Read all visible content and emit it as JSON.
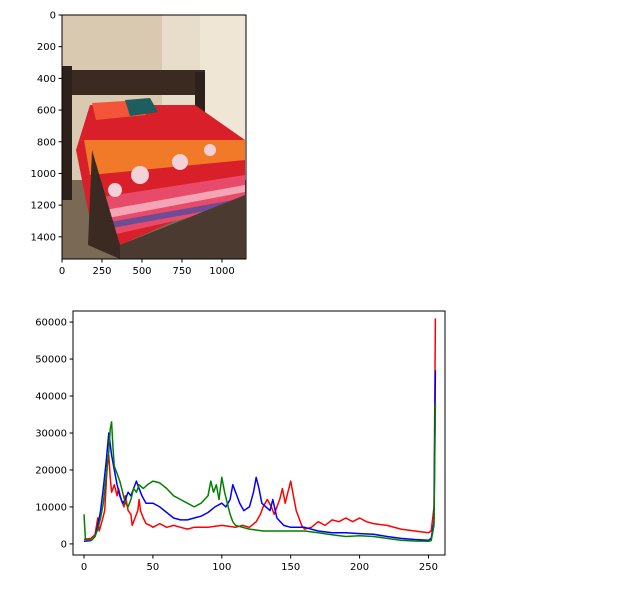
{
  "chart_data": [
    {
      "type": "image",
      "description_free": true,
      "x_ticks": [
        0,
        250,
        500,
        750,
        1000
      ],
      "y_ticks": [
        0,
        200,
        400,
        600,
        800,
        1000,
        1200,
        1400
      ],
      "xlim": [
        0,
        1150
      ],
      "ylim": [
        1540,
        0
      ],
      "colors": {
        "wall": "#e8dccb",
        "headboard": "#3a2a22",
        "bedspread_red": "#d81f2a",
        "bedspread_orange": "#f07a28",
        "pillow_teal": "#1e5e5f",
        "floor": "#7a6a55"
      }
    },
    {
      "type": "line",
      "title": "",
      "xlabel": "",
      "ylabel": "",
      "xlim": [
        -8,
        262
      ],
      "ylim": [
        -3000,
        63000
      ],
      "x_ticks": [
        0,
        50,
        100,
        150,
        200,
        250
      ],
      "y_ticks": [
        0,
        10000,
        20000,
        30000,
        40000,
        50000,
        60000
      ],
      "grid": false,
      "series": [
        {
          "color": "#ff0000",
          "points": [
            [
              0,
              1200
            ],
            [
              5,
              1500
            ],
            [
              8,
              2500
            ],
            [
              10,
              7000
            ],
            [
              11,
              3500
            ],
            [
              13,
              6000
            ],
            [
              15,
              9000
            ],
            [
              17,
              22000
            ],
            [
              18,
              24000
            ],
            [
              19,
              18000
            ],
            [
              20,
              14000
            ],
            [
              22,
              16000
            ],
            [
              24,
              13000
            ],
            [
              25,
              15000
            ],
            [
              27,
              12000
            ],
            [
              29,
              10000
            ],
            [
              30,
              13000
            ],
            [
              32,
              9000
            ],
            [
              34,
              8000
            ],
            [
              35,
              5000
            ],
            [
              37,
              7000
            ],
            [
              39,
              9000
            ],
            [
              40,
              12000
            ],
            [
              41,
              9000
            ],
            [
              43,
              7000
            ],
            [
              45,
              5500
            ],
            [
              48,
              5000
            ],
            [
              50,
              4500
            ],
            [
              55,
              5500
            ],
            [
              60,
              4500
            ],
            [
              65,
              5000
            ],
            [
              70,
              4500
            ],
            [
              75,
              4000
            ],
            [
              80,
              4500
            ],
            [
              90,
              4500
            ],
            [
              100,
              5000
            ],
            [
              110,
              4500
            ],
            [
              115,
              5000
            ],
            [
              120,
              4500
            ],
            [
              125,
              6000
            ],
            [
              128,
              8000
            ],
            [
              130,
              10000
            ],
            [
              133,
              12000
            ],
            [
              136,
              10000
            ],
            [
              138,
              8000
            ],
            [
              140,
              10000
            ],
            [
              142,
              12000
            ],
            [
              144,
              15000
            ],
            [
              146,
              11000
            ],
            [
              148,
              14000
            ],
            [
              150,
              17000
            ],
            [
              152,
              13000
            ],
            [
              154,
              9000
            ],
            [
              156,
              7000
            ],
            [
              158,
              5000
            ],
            [
              160,
              4000
            ],
            [
              165,
              4500
            ],
            [
              170,
              6000
            ],
            [
              175,
              5000
            ],
            [
              180,
              6500
            ],
            [
              185,
              6000
            ],
            [
              190,
              7000
            ],
            [
              195,
              6000
            ],
            [
              200,
              7000
            ],
            [
              205,
              6000
            ],
            [
              210,
              5500
            ],
            [
              220,
              5000
            ],
            [
              230,
              4000
            ],
            [
              240,
              3500
            ],
            [
              250,
              3000
            ],
            [
              252,
              3500
            ],
            [
              254,
              10000
            ],
            [
              255,
              61000
            ]
          ]
        },
        {
          "color": "#0000ff",
          "points": [
            [
              0,
              700
            ],
            [
              5,
              900
            ],
            [
              8,
              2000
            ],
            [
              10,
              5000
            ],
            [
              12,
              9000
            ],
            [
              14,
              15000
            ],
            [
              16,
              22000
            ],
            [
              18,
              30000
            ],
            [
              19,
              27000
            ],
            [
              20,
              24000
            ],
            [
              22,
              20000
            ],
            [
              24,
              16000
            ],
            [
              26,
              13000
            ],
            [
              28,
              11000
            ],
            [
              30,
              12000
            ],
            [
              32,
              14000
            ],
            [
              34,
              13000
            ],
            [
              36,
              15000
            ],
            [
              38,
              17000
            ],
            [
              40,
              15000
            ],
            [
              42,
              13000
            ],
            [
              45,
              11000
            ],
            [
              48,
              11000
            ],
            [
              50,
              11000
            ],
            [
              55,
              10000
            ],
            [
              60,
              8500
            ],
            [
              65,
              7000
            ],
            [
              70,
              6500
            ],
            [
              75,
              6500
            ],
            [
              80,
              7000
            ],
            [
              85,
              7500
            ],
            [
              90,
              8500
            ],
            [
              95,
              10000
            ],
            [
              100,
              11000
            ],
            [
              103,
              10000
            ],
            [
              106,
              12000
            ],
            [
              108,
              16000
            ],
            [
              110,
              14000
            ],
            [
              113,
              11000
            ],
            [
              116,
              9000
            ],
            [
              120,
              10000
            ],
            [
              123,
              14000
            ],
            [
              125,
              18000
            ],
            [
              127,
              15000
            ],
            [
              129,
              11000
            ],
            [
              132,
              10000
            ],
            [
              135,
              9000
            ],
            [
              137,
              12000
            ],
            [
              140,
              7000
            ],
            [
              145,
              5000
            ],
            [
              150,
              4500
            ],
            [
              160,
              4500
            ],
            [
              170,
              3500
            ],
            [
              180,
              3000
            ],
            [
              190,
              3000
            ],
            [
              200,
              2800
            ],
            [
              210,
              2600
            ],
            [
              220,
              2000
            ],
            [
              230,
              1500
            ],
            [
              240,
              1200
            ],
            [
              250,
              1000
            ],
            [
              252,
              1500
            ],
            [
              254,
              6000
            ],
            [
              255,
              47000
            ]
          ]
        },
        {
          "color": "#008000",
          "points": [
            [
              0,
              8000
            ],
            [
              1,
              1500
            ],
            [
              3,
              1000
            ],
            [
              6,
              1200
            ],
            [
              8,
              2000
            ],
            [
              10,
              4000
            ],
            [
              12,
              7000
            ],
            [
              14,
              11000
            ],
            [
              16,
              18000
            ],
            [
              18,
              25000
            ],
            [
              19,
              31000
            ],
            [
              20,
              33000
            ],
            [
              21,
              26000
            ],
            [
              22,
              21000
            ],
            [
              24,
              19000
            ],
            [
              26,
              17000
            ],
            [
              28,
              14000
            ],
            [
              30,
              11000
            ],
            [
              32,
              10000
            ],
            [
              34,
              12000
            ],
            [
              36,
              15000
            ],
            [
              38,
              14000
            ],
            [
              40,
              16000
            ],
            [
              43,
              15000
            ],
            [
              46,
              16000
            ],
            [
              50,
              17000
            ],
            [
              55,
              16500
            ],
            [
              60,
              15000
            ],
            [
              65,
              13000
            ],
            [
              70,
              12000
            ],
            [
              75,
              11000
            ],
            [
              80,
              10000
            ],
            [
              85,
              11000
            ],
            [
              90,
              13000
            ],
            [
              92,
              17000
            ],
            [
              94,
              14000
            ],
            [
              96,
              16000
            ],
            [
              98,
              12000
            ],
            [
              100,
              18000
            ],
            [
              102,
              14000
            ],
            [
              104,
              11000
            ],
            [
              106,
              8000
            ],
            [
              108,
              6000
            ],
            [
              110,
              5000
            ],
            [
              115,
              4500
            ],
            [
              120,
              4000
            ],
            [
              130,
              3500
            ],
            [
              140,
              3500
            ],
            [
              150,
              3500
            ],
            [
              160,
              3500
            ],
            [
              170,
              3000
            ],
            [
              180,
              2500
            ],
            [
              190,
              2000
            ],
            [
              200,
              2200
            ],
            [
              210,
              2000
            ],
            [
              220,
              1500
            ],
            [
              230,
              1000
            ],
            [
              240,
              800
            ],
            [
              250,
              700
            ],
            [
              252,
              900
            ],
            [
              254,
              5000
            ],
            [
              255,
              38000
            ]
          ]
        }
      ]
    }
  ]
}
